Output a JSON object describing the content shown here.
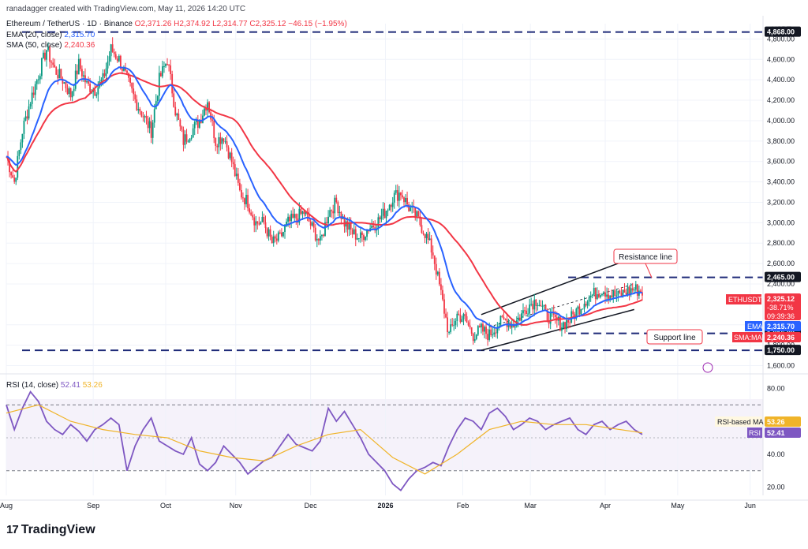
{
  "header": {
    "credit": "ranadagger created with TradingView.com, May 11, 2026 14:20 UTC",
    "symbol": "Ethereum / TetherUS · 1D · Binance",
    "ohlc": "O2,371.26 H2,374.92 L2,314.77 C2,325.12 −46.15 (−1.95%)",
    "ema_label": "EMA (20, close)",
    "ema_value": "2,315.70",
    "sma_label": "SMA (50, close)",
    "sma_value": "2,240.36",
    "rsi_label": "RSI (14, close)",
    "rsi_value": "52.41",
    "rsi_ma_value": "53.26"
  },
  "footer": {
    "brand": "TradingView",
    "logo": "17"
  },
  "colors": {
    "up": "#089981",
    "down": "#f23645",
    "ema": "#2962ff",
    "sma": "#f23645",
    "rsi": "#7e57c2",
    "rsi_ma": "#f0b429",
    "level": "#1e2a78",
    "channel": "#131722"
  },
  "chart_data": [
    {
      "type": "candlestick",
      "symbol": "ETHUSDT",
      "currency": "USDT",
      "x_ticks": [
        "Aug",
        "Sep",
        "Oct",
        "Nov",
        "Dec",
        "2026",
        "Feb",
        "Mar",
        "Apr",
        "May",
        "Jun"
      ],
      "y_ticks": [
        "4,800.00",
        "4,600.00",
        "4,400.00",
        "4,200.00",
        "4,000.00",
        "3,800.00",
        "3,600.00",
        "3,400.00",
        "3,200.00",
        "3,000.00",
        "2,800.00",
        "2,600.00",
        "2,400.00",
        "2,000.00",
        "1,800.00",
        "1,600.00"
      ],
      "ylim": [
        1550,
        4950
      ],
      "closes": [
        [
          0,
          3650
        ],
        [
          5,
          3400
        ],
        [
          10,
          3900
        ],
        [
          15,
          4200
        ],
        [
          20,
          4450
        ],
        [
          25,
          4700
        ],
        [
          30,
          4500
        ],
        [
          35,
          4400
        ],
        [
          40,
          4250
        ],
        [
          45,
          4550
        ],
        [
          50,
          4350
        ],
        [
          55,
          4300
        ],
        [
          60,
          4400
        ],
        [
          65,
          4700
        ],
        [
          70,
          4600
        ],
        [
          75,
          4400
        ],
        [
          80,
          4200
        ],
        [
          85,
          4050
        ],
        [
          90,
          3900
        ],
        [
          95,
          4400
        ],
        [
          100,
          4600
        ],
        [
          105,
          4100
        ],
        [
          110,
          3800
        ],
        [
          115,
          3900
        ],
        [
          120,
          4000
        ],
        [
          125,
          4200
        ],
        [
          130,
          3800
        ],
        [
          135,
          3850
        ],
        [
          140,
          3600
        ],
        [
          145,
          3300
        ],
        [
          150,
          3200
        ],
        [
          155,
          3000
        ],
        [
          160,
          3000
        ],
        [
          165,
          2800
        ],
        [
          170,
          2850
        ],
        [
          175,
          3000
        ],
        [
          180,
          3050
        ],
        [
          185,
          3100
        ],
        [
          190,
          2950
        ],
        [
          195,
          2800
        ],
        [
          200,
          3100
        ],
        [
          205,
          3200
        ],
        [
          210,
          3000
        ],
        [
          215,
          2900
        ],
        [
          220,
          2850
        ],
        [
          225,
          2950
        ],
        [
          230,
          3000
        ],
        [
          235,
          3100
        ],
        [
          240,
          3250
        ],
        [
          245,
          3300
        ],
        [
          250,
          3150
        ],
        [
          255,
          3050
        ],
        [
          260,
          2900
        ],
        [
          265,
          2700
        ],
        [
          270,
          2300
        ],
        [
          275,
          1900
        ],
        [
          280,
          2100
        ],
        [
          285,
          2050
        ],
        [
          290,
          1900
        ],
        [
          295,
          1950
        ],
        [
          300,
          1900
        ],
        [
          305,
          2000
        ],
        [
          310,
          2050
        ],
        [
          315,
          2000
        ],
        [
          320,
          2100
        ],
        [
          325,
          2200
        ],
        [
          330,
          2250
        ],
        [
          335,
          2100
        ],
        [
          340,
          2050
        ],
        [
          345,
          2000
        ],
        [
          350,
          2050
        ],
        [
          355,
          2150
        ],
        [
          360,
          2250
        ],
        [
          365,
          2300
        ],
        [
          370,
          2350
        ],
        [
          375,
          2300
        ],
        [
          380,
          2280
        ],
        [
          385,
          2330
        ],
        [
          390,
          2350
        ],
        [
          395,
          2325
        ]
      ],
      "ema": {
        "label": "EMA",
        "value": "2,315.70"
      },
      "sma": {
        "label": "SMA:MA",
        "value": "2,240.36"
      },
      "price_tag": {
        "label": "ETHUSDT",
        "value": "2,325.12",
        "change": "-38.71%",
        "countdown": "09:39:36"
      },
      "levels": [
        {
          "value": 4868,
          "label": "4,868.00"
        },
        {
          "value": 2465,
          "label": "2,465.00"
        },
        {
          "value": 1916,
          "label": "1,916.00"
        },
        {
          "value": 1750,
          "label": "1,750.00"
        }
      ],
      "annotations": [
        "Resistance line",
        "Support line"
      ]
    },
    {
      "type": "line",
      "title": "RSI (14, close)",
      "y_ticks": [
        "80.00",
        "60.00",
        "40.00",
        "20.00"
      ],
      "ylim": [
        15,
        85
      ],
      "rsi_band": [
        30,
        70
      ],
      "series": [
        {
          "name": "RSI",
          "value": "52.41",
          "values": [
            [
              0,
              70
            ],
            [
              5,
              55
            ],
            [
              10,
              68
            ],
            [
              15,
              78
            ],
            [
              20,
              72
            ],
            [
              25,
              60
            ],
            [
              30,
              55
            ],
            [
              35,
              52
            ],
            [
              40,
              58
            ],
            [
              45,
              54
            ],
            [
              50,
              48
            ],
            [
              55,
              55
            ],
            [
              60,
              58
            ],
            [
              65,
              62
            ],
            [
              70,
              58
            ],
            [
              75,
              30
            ],
            [
              80,
              45
            ],
            [
              85,
              55
            ],
            [
              90,
              62
            ],
            [
              95,
              48
            ],
            [
              100,
              45
            ],
            [
              105,
              42
            ],
            [
              110,
              40
            ],
            [
              115,
              50
            ],
            [
              120,
              34
            ],
            [
              125,
              30
            ],
            [
              130,
              35
            ],
            [
              135,
              45
            ],
            [
              140,
              40
            ],
            [
              145,
              35
            ],
            [
              150,
              28
            ],
            [
              155,
              32
            ],
            [
              160,
              36
            ],
            [
              165,
              38
            ],
            [
              170,
              45
            ],
            [
              175,
              52
            ],
            [
              180,
              46
            ],
            [
              185,
              44
            ],
            [
              190,
              42
            ],
            [
              195,
              48
            ],
            [
              200,
              68
            ],
            [
              205,
              60
            ],
            [
              210,
              66
            ],
            [
              215,
              58
            ],
            [
              220,
              50
            ],
            [
              225,
              40
            ],
            [
              230,
              35
            ],
            [
              235,
              30
            ],
            [
              240,
              22
            ],
            [
              245,
              18
            ],
            [
              250,
              25
            ],
            [
              255,
              30
            ],
            [
              260,
              32
            ],
            [
              265,
              35
            ],
            [
              270,
              33
            ],
            [
              275,
              45
            ],
            [
              280,
              55
            ],
            [
              285,
              62
            ],
            [
              290,
              60
            ],
            [
              295,
              55
            ],
            [
              300,
              65
            ],
            [
              305,
              68
            ],
            [
              310,
              63
            ],
            [
              315,
              55
            ],
            [
              320,
              58
            ],
            [
              325,
              62
            ],
            [
              330,
              60
            ],
            [
              335,
              55
            ],
            [
              340,
              58
            ],
            [
              345,
              60
            ],
            [
              350,
              62
            ],
            [
              355,
              55
            ],
            [
              360,
              52
            ],
            [
              365,
              58
            ],
            [
              370,
              60
            ],
            [
              375,
              55
            ],
            [
              380,
              58
            ],
            [
              385,
              60
            ],
            [
              390,
              55
            ],
            [
              395,
              52
            ]
          ]
        },
        {
          "name": "RSI-based MA",
          "value": "53.26",
          "values": [
            [
              0,
              65
            ],
            [
              20,
              70
            ],
            [
              40,
              60
            ],
            [
              60,
              55
            ],
            [
              80,
              52
            ],
            [
              100,
              50
            ],
            [
              120,
              42
            ],
            [
              140,
              38
            ],
            [
              160,
              36
            ],
            [
              180,
              45
            ],
            [
              200,
              52
            ],
            [
              220,
              55
            ],
            [
              240,
              38
            ],
            [
              260,
              28
            ],
            [
              280,
              40
            ],
            [
              300,
              55
            ],
            [
              320,
              60
            ],
            [
              340,
              58
            ],
            [
              360,
              58
            ],
            [
              395,
              53
            ]
          ]
        }
      ]
    }
  ]
}
